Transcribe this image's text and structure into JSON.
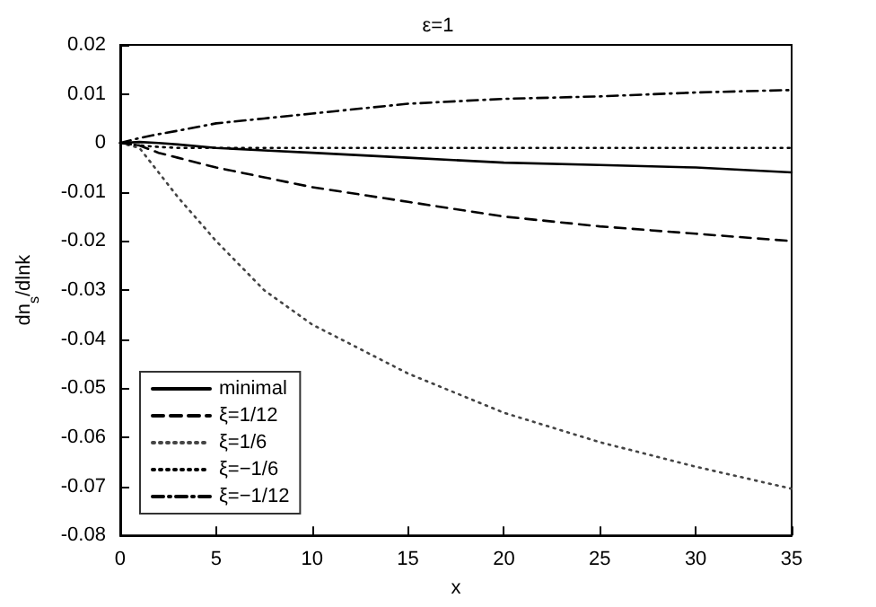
{
  "chart_data": {
    "type": "line",
    "title": "ε=1",
    "xlabel": "x",
    "ylabel": "dn$_{s}$/dlnk",
    "xlim": [
      0,
      35
    ],
    "xticks": [
      0,
      5,
      10,
      15,
      20,
      25,
      30,
      35
    ],
    "ylim": [
      -0.08,
      0.02
    ],
    "yticks": [
      -0.08,
      -0.07,
      -0.06,
      -0.05,
      -0.04,
      -0.03,
      -0.02,
      -0.01,
      0,
      0.01,
      0.02
    ],
    "grid": false,
    "legend": "bottom left",
    "marker": "none",
    "x": [
      0,
      1,
      2,
      3,
      5,
      7.5,
      10,
      15,
      20,
      25,
      30,
      35
    ],
    "series": [
      {
        "name": "minimal",
        "color": "#000000",
        "line_style": "solid",
        "values": [
          0,
          0.0002,
          0,
          -0.0003,
          -0.001,
          -0.0015,
          -0.002,
          -0.003,
          -0.004,
          -0.0045,
          -0.005,
          -0.006
        ]
      },
      {
        "name": "ξ=1/12",
        "color": "#000000",
        "line_style": "dashed",
        "values": [
          0,
          -0.0005,
          -0.002,
          -0.003,
          -0.005,
          -0.007,
          -0.009,
          -0.012,
          -0.015,
          -0.017,
          -0.0185,
          -0.02
        ]
      },
      {
        "name": "ξ=1/6",
        "color": "#444444",
        "line_style": "dotted",
        "values": [
          0,
          -0.001,
          -0.006,
          -0.011,
          -0.02,
          -0.03,
          -0.037,
          -0.047,
          -0.055,
          -0.061,
          -0.066,
          -0.0705
        ]
      },
      {
        "name": "ξ=−1/6",
        "color": "#000000",
        "line_style": "dotted",
        "values": [
          0,
          -0.0005,
          -0.0008,
          -0.001,
          -0.001,
          -0.001,
          -0.001,
          -0.001,
          -0.001,
          -0.001,
          -0.001,
          -0.001
        ]
      },
      {
        "name": "ξ=−1/12",
        "color": "#000000",
        "line_style": "dashdot",
        "values": [
          0,
          0.001,
          0.0018,
          0.0025,
          0.004,
          0.005,
          0.006,
          0.008,
          0.009,
          0.0095,
          0.0103,
          0.0108
        ]
      }
    ]
  }
}
